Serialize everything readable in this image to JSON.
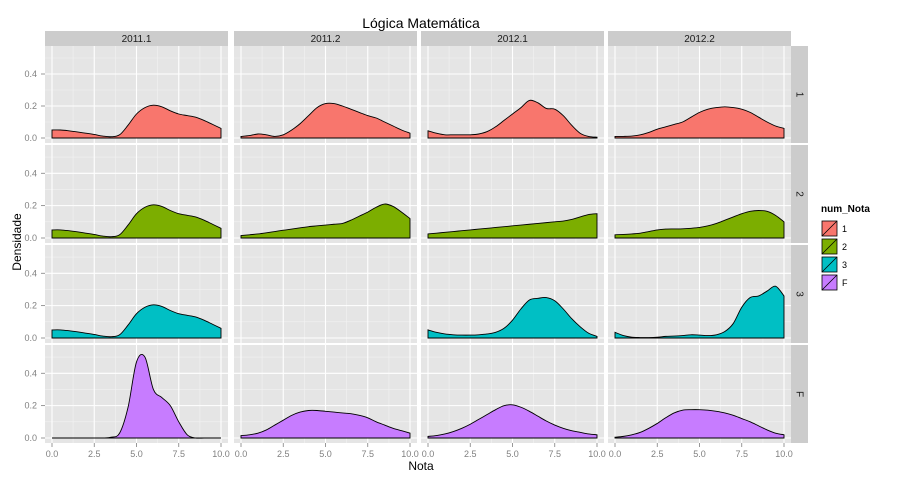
{
  "chart_data": {
    "type": "area",
    "title": "Lógica Matemática",
    "xlabel": "Nota",
    "ylabel": "Densidade",
    "xlim": [
      0,
      10
    ],
    "ylim": [
      0,
      0.55
    ],
    "x_ticks": [
      0,
      2.5,
      5,
      7.5,
      10
    ],
    "x_tick_labels": [
      "0.0",
      "2.5",
      "5.0",
      "7.5",
      "10.0"
    ],
    "y_ticks": [
      0,
      0.2,
      0.4
    ],
    "y_tick_labels": [
      "0.0",
      "0.2",
      "0.4"
    ],
    "grid": true,
    "legend_position": "right",
    "legend": {
      "title": "num_Nota",
      "entries": [
        {
          "label": "1",
          "color": "#F8766D"
        },
        {
          "label": "2",
          "color": "#7CAE00"
        },
        {
          "label": "3",
          "color": "#00BFC4"
        },
        {
          "label": "F",
          "color": "#C77CFF"
        }
      ]
    },
    "columns": [
      "2011.1",
      "2011.2",
      "2012.1",
      "2012.2"
    ],
    "rows": [
      "1",
      "2",
      "3",
      "F"
    ],
    "x": [
      0,
      0.5,
      1,
      1.5,
      2,
      2.5,
      3,
      3.5,
      4,
      4.5,
      5,
      5.5,
      6,
      6.5,
      7,
      7.5,
      8,
      8.5,
      9,
      9.5,
      10
    ],
    "panels": [
      {
        "row": "1",
        "col": "2011.1",
        "values": [
          0.05,
          0.05,
          0.045,
          0.038,
          0.03,
          0.022,
          0.012,
          0.008,
          0.02,
          0.08,
          0.15,
          0.19,
          0.205,
          0.195,
          0.17,
          0.15,
          0.14,
          0.13,
          0.11,
          0.085,
          0.06
        ]
      },
      {
        "row": "1",
        "col": "2011.2",
        "values": [
          0.01,
          0.015,
          0.025,
          0.02,
          0.01,
          0.02,
          0.05,
          0.09,
          0.14,
          0.19,
          0.215,
          0.215,
          0.2,
          0.18,
          0.16,
          0.14,
          0.125,
          0.1,
          0.075,
          0.05,
          0.03
        ]
      },
      {
        "row": "1",
        "col": "2012.1",
        "values": [
          0.045,
          0.03,
          0.02,
          0.02,
          0.02,
          0.02,
          0.025,
          0.04,
          0.07,
          0.11,
          0.15,
          0.19,
          0.235,
          0.22,
          0.185,
          0.18,
          0.14,
          0.08,
          0.03,
          0.01,
          0.005
        ]
      },
      {
        "row": "1",
        "col": "2012.2",
        "values": [
          0.01,
          0.01,
          0.012,
          0.02,
          0.035,
          0.055,
          0.07,
          0.085,
          0.1,
          0.13,
          0.16,
          0.18,
          0.19,
          0.195,
          0.19,
          0.18,
          0.16,
          0.13,
          0.1,
          0.075,
          0.06
        ]
      },
      {
        "row": "2",
        "col": "2011.1",
        "values": [
          0.05,
          0.05,
          0.045,
          0.038,
          0.03,
          0.022,
          0.012,
          0.008,
          0.02,
          0.08,
          0.15,
          0.19,
          0.205,
          0.195,
          0.17,
          0.15,
          0.14,
          0.13,
          0.11,
          0.085,
          0.06
        ]
      },
      {
        "row": "2",
        "col": "2011.2",
        "values": [
          0.015,
          0.02,
          0.025,
          0.032,
          0.04,
          0.048,
          0.055,
          0.063,
          0.07,
          0.075,
          0.08,
          0.085,
          0.09,
          0.11,
          0.135,
          0.16,
          0.19,
          0.21,
          0.195,
          0.16,
          0.12
        ]
      },
      {
        "row": "2",
        "col": "2012.1",
        "values": [
          0.025,
          0.03,
          0.035,
          0.04,
          0.045,
          0.05,
          0.055,
          0.06,
          0.065,
          0.07,
          0.075,
          0.08,
          0.085,
          0.09,
          0.095,
          0.1,
          0.105,
          0.115,
          0.13,
          0.145,
          0.15
        ]
      },
      {
        "row": "2",
        "col": "2012.2",
        "values": [
          0.02,
          0.022,
          0.025,
          0.03,
          0.04,
          0.05,
          0.055,
          0.056,
          0.057,
          0.06,
          0.065,
          0.075,
          0.09,
          0.11,
          0.13,
          0.15,
          0.165,
          0.17,
          0.165,
          0.14,
          0.1
        ]
      },
      {
        "row": "3",
        "col": "2011.1",
        "values": [
          0.05,
          0.05,
          0.045,
          0.038,
          0.03,
          0.022,
          0.012,
          0.008,
          0.02,
          0.08,
          0.15,
          0.19,
          0.205,
          0.195,
          0.17,
          0.15,
          0.14,
          0.13,
          0.11,
          0.085,
          0.06
        ]
      },
      {
        "row": "3",
        "col": "2011.2",
        "values": null
      },
      {
        "row": "3",
        "col": "2012.1",
        "values": [
          0.05,
          0.035,
          0.025,
          0.02,
          0.018,
          0.018,
          0.02,
          0.025,
          0.035,
          0.06,
          0.11,
          0.18,
          0.235,
          0.245,
          0.25,
          0.23,
          0.18,
          0.12,
          0.07,
          0.03,
          0.01
        ]
      },
      {
        "row": "3",
        "col": "2012.2",
        "values": [
          0.035,
          0.015,
          0.005,
          0.003,
          0.003,
          0.005,
          0.01,
          0.012,
          0.015,
          0.02,
          0.018,
          0.015,
          0.02,
          0.04,
          0.09,
          0.19,
          0.25,
          0.26,
          0.29,
          0.32,
          0.26
        ]
      },
      {
        "row": "F",
        "col": "2011.1",
        "values": [
          0.0,
          0.0,
          0.0,
          0.0,
          0.0,
          0.0,
          0.0,
          0.005,
          0.03,
          0.19,
          0.47,
          0.5,
          0.3,
          0.25,
          0.2,
          0.1,
          0.02,
          0.0,
          0.0,
          0.0,
          0.0
        ]
      },
      {
        "row": "F",
        "col": "2011.2",
        "values": [
          0.015,
          0.02,
          0.03,
          0.05,
          0.08,
          0.11,
          0.14,
          0.16,
          0.17,
          0.17,
          0.165,
          0.16,
          0.155,
          0.15,
          0.14,
          0.125,
          0.1,
          0.08,
          0.06,
          0.045,
          0.03
        ]
      },
      {
        "row": "F",
        "col": "2012.1",
        "values": [
          0.01,
          0.015,
          0.025,
          0.04,
          0.06,
          0.085,
          0.115,
          0.145,
          0.175,
          0.2,
          0.205,
          0.19,
          0.165,
          0.135,
          0.105,
          0.08,
          0.06,
          0.045,
          0.035,
          0.025,
          0.02
        ]
      },
      {
        "row": "F",
        "col": "2012.2",
        "values": [
          0.005,
          0.01,
          0.02,
          0.035,
          0.06,
          0.09,
          0.125,
          0.155,
          0.172,
          0.175,
          0.175,
          0.172,
          0.165,
          0.155,
          0.14,
          0.12,
          0.1,
          0.075,
          0.05,
          0.03,
          0.02
        ]
      }
    ],
    "colors": {
      "panel_bg": "#E5E5E5",
      "grid_major": "#FFFFFF",
      "grid_minor": "#F2F2F2",
      "strip_bg": "#CCCCCC",
      "axis_text": "#7F7F7F"
    }
  }
}
